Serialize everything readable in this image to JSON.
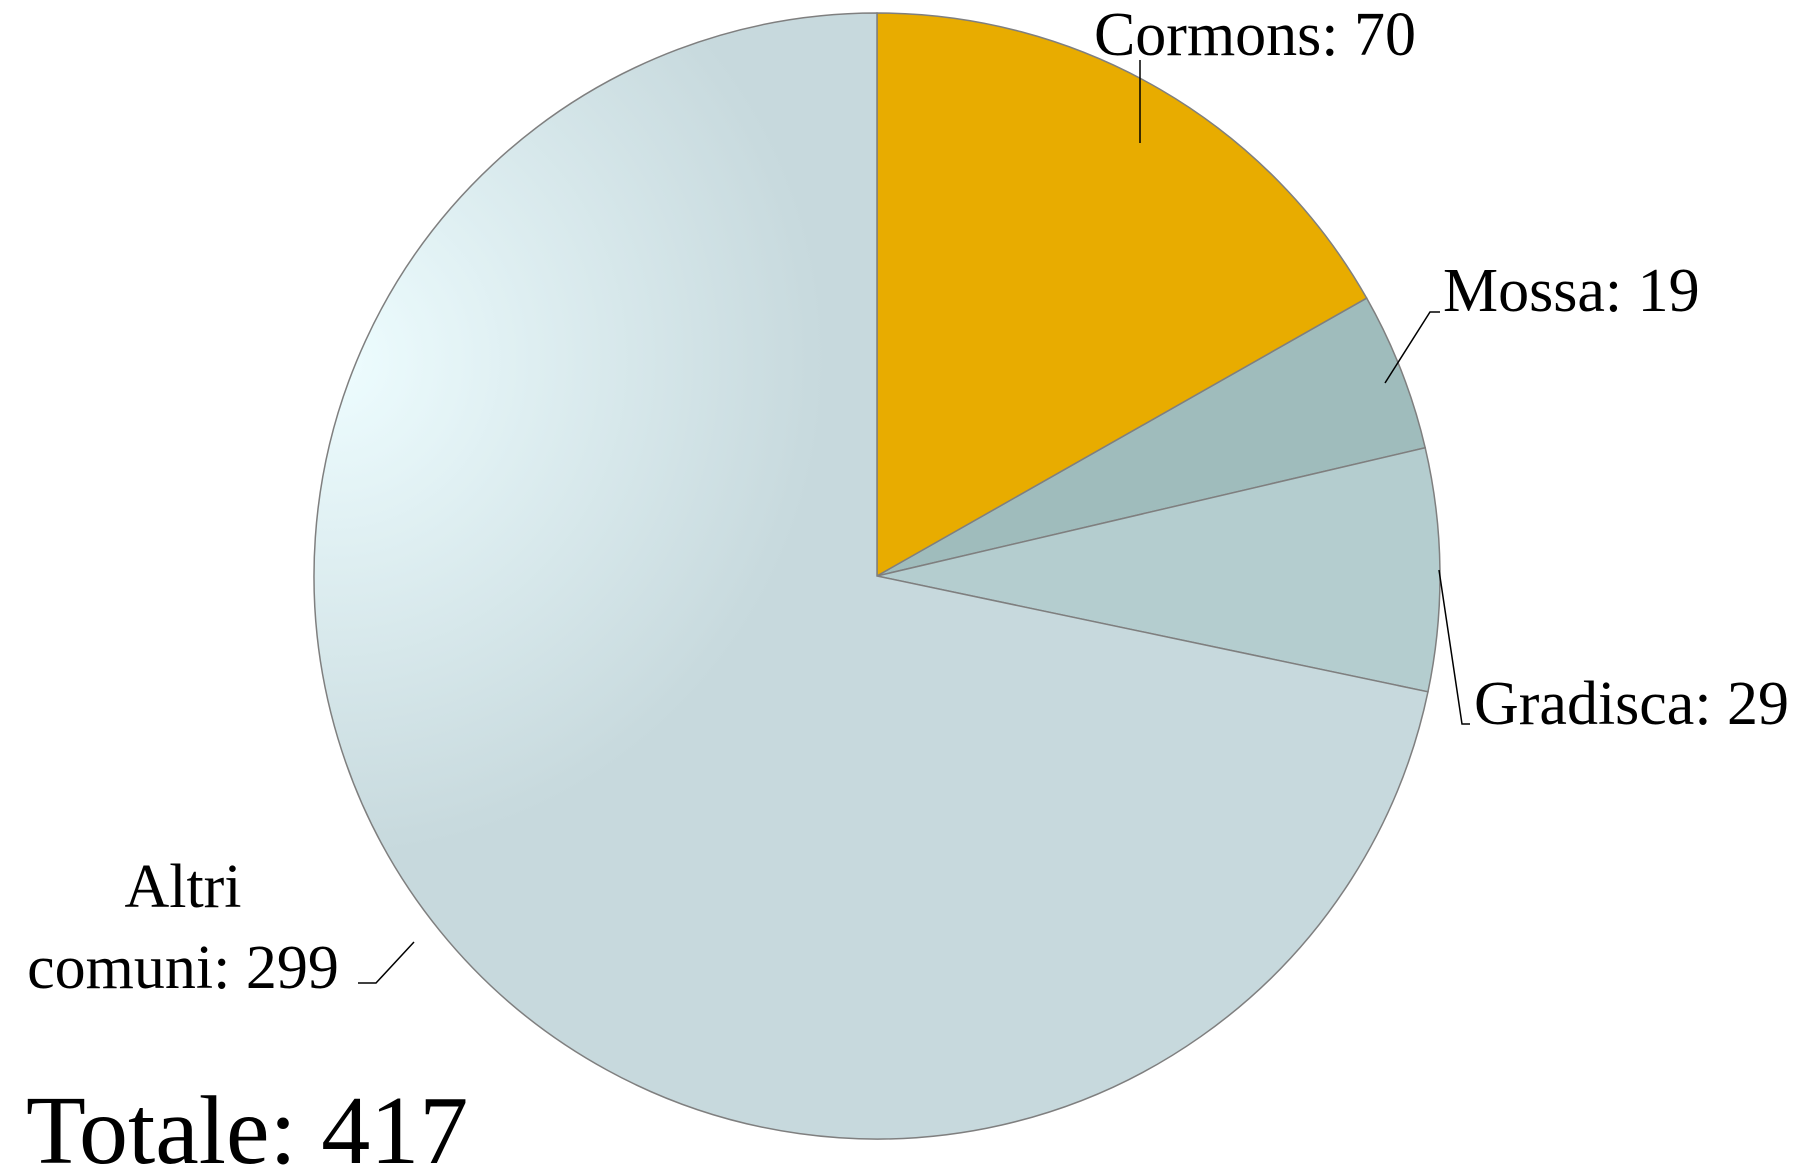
{
  "chart_data": {
    "type": "pie",
    "slices": [
      {
        "name": "Cormons",
        "value": 70,
        "label": "Cormons: 70",
        "color": "#E8AC00"
      },
      {
        "name": "Mossa",
        "value": 19,
        "label": "Mossa: 19",
        "color": "#9FBCBC"
      },
      {
        "name": "Gradisca",
        "value": 29,
        "label": "Gradisca: 29",
        "color": "#B4CDCF"
      },
      {
        "name": "Altri comuni",
        "value": 299,
        "label": "Altri comuni: 299",
        "label_lines": [
          "Altri",
          "comuni: 299"
        ],
        "color": "#C7D9DD"
      }
    ],
    "start_angle": "12 o'clock",
    "direction": "clockwise",
    "total_label": "Totale: 417",
    "legend": "none",
    "slice_outline_color": "#7F7F7F",
    "altri_gradient_highlight": "#EEFDFF"
  }
}
